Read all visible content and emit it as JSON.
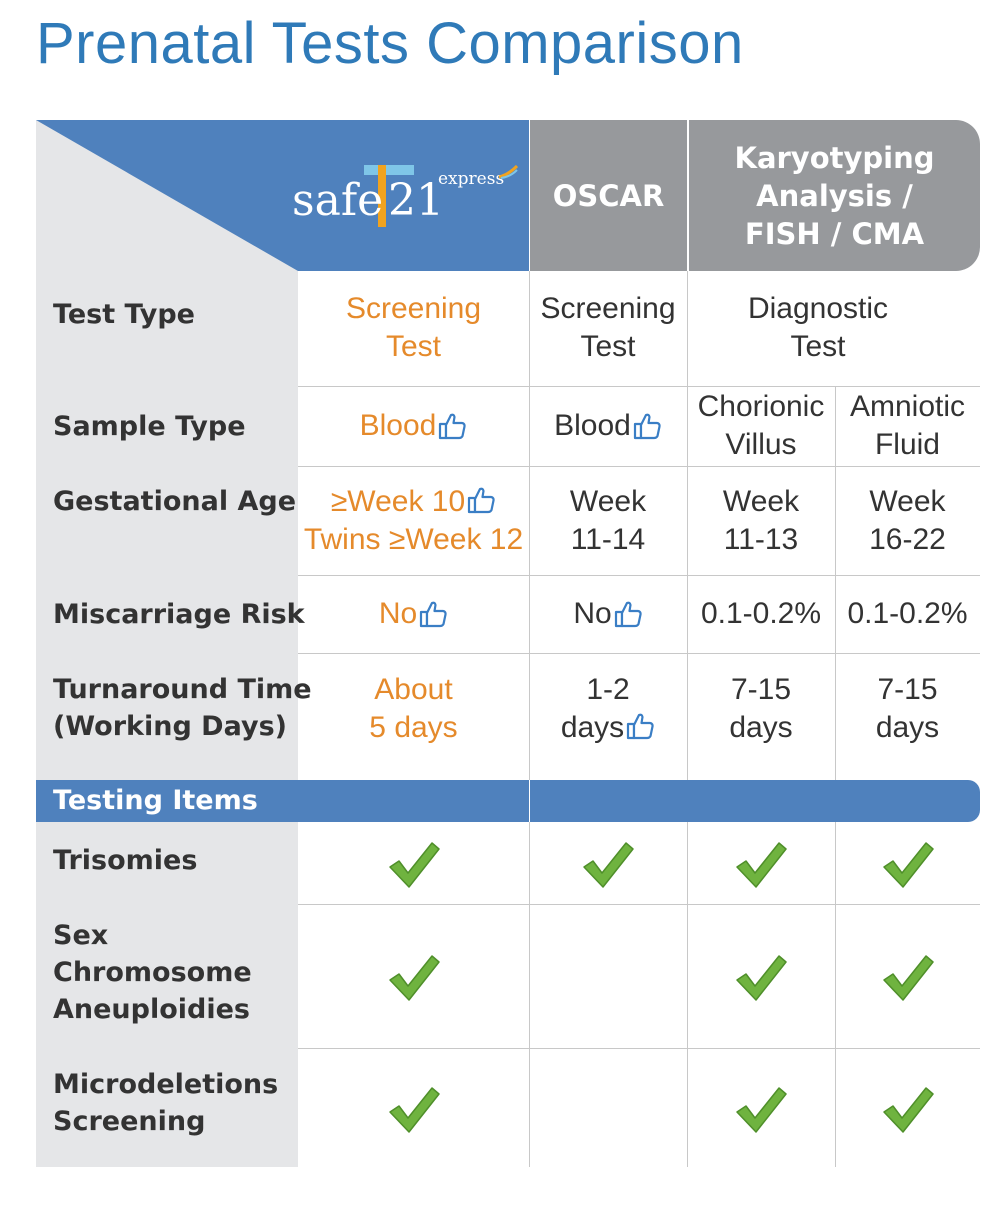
{
  "title": "Prenatal Tests Comparison",
  "colors": {
    "title": "#2f7ab8",
    "header_blue": "#4f81bd",
    "header_grey": "#97999c",
    "orange": "#e58a2b",
    "check_green": "#6fb33f",
    "thumb_blue": "#3a7ec5"
  },
  "header": {
    "brand": {
      "safe": "safe",
      "num": "21",
      "express": "express"
    },
    "col2": "OSCAR",
    "col3": "Karyotyping\nAnalysis /\nFISH / CMA"
  },
  "rows": {
    "test_type": {
      "label": "Test Type",
      "safe21": "Screening\nTest",
      "oscar": "Screening\nTest",
      "karyo": "Diagnostic\nTest"
    },
    "sample_type": {
      "label": "Sample Type",
      "safe21": "Blood",
      "oscar": "Blood",
      "cvs": "Chorionic\nVillus",
      "amnio": "Amniotic\nFluid"
    },
    "gestational_age": {
      "label": "Gestational Age",
      "safe21_line1": "≥Week 10",
      "safe21_line2": "Twins ≥Week 12",
      "oscar": "Week\n11-14",
      "cvs": "Week\n11-13",
      "amnio": "Week\n16-22"
    },
    "miscarriage_risk": {
      "label": "Miscarriage Risk",
      "safe21": "No",
      "oscar": "No",
      "cvs": "0.1-0.2%",
      "amnio": "0.1-0.2%"
    },
    "turnaround": {
      "label": "Turnaround Time\n(Working Days)",
      "safe21": "About\n5 days",
      "oscar_line1": "1-2",
      "oscar_line2": "days",
      "cvs": "7-15\ndays",
      "amnio": "7-15\ndays"
    }
  },
  "testing_items": {
    "section_label": "Testing Items",
    "items": [
      {
        "label": "Trisomies",
        "safe21": true,
        "oscar": true,
        "cvs": true,
        "amnio": true
      },
      {
        "label": "Sex\nChromosome\nAneuploidies",
        "safe21": true,
        "oscar": false,
        "cvs": true,
        "amnio": true
      },
      {
        "label": "Microdeletions\nScreening",
        "safe21": true,
        "oscar": false,
        "cvs": true,
        "amnio": true
      }
    ]
  },
  "icons": {
    "thumb": "thumbs-up-icon",
    "check": "check-icon"
  }
}
